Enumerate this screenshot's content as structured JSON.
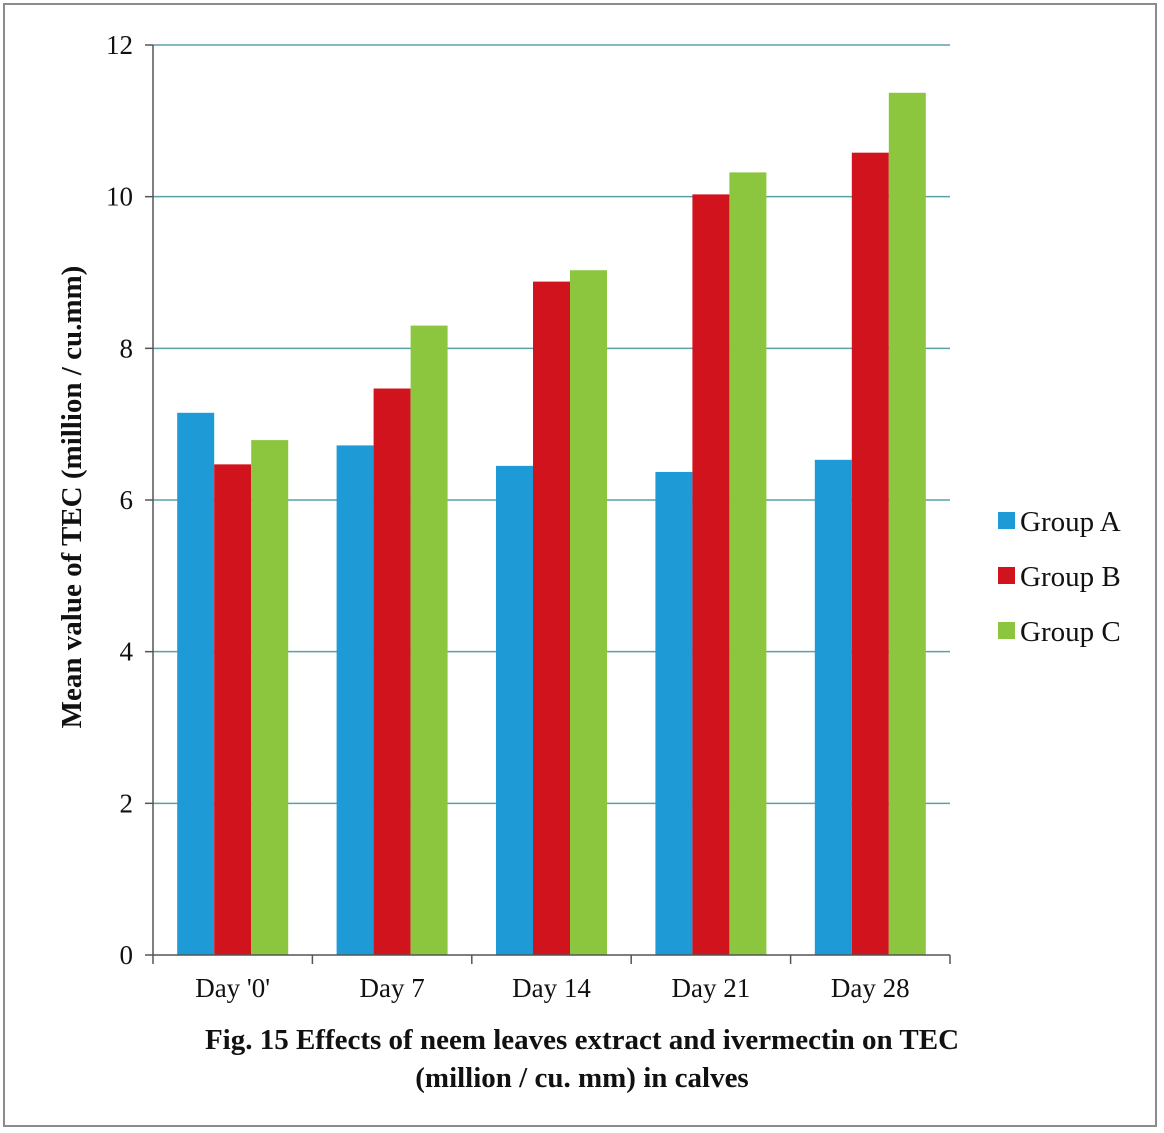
{
  "caption": {
    "line1": "Fig. 15 Effects of neem leaves extract and ivermectin on TEC",
    "line2": "(million / cu. mm) in calves"
  },
  "chart_data": {
    "type": "bar",
    "title": "Fig. 15 Effects of neem leaves extract and ivermectin on TEC (million / cu. mm) in calves",
    "xlabel": "",
    "ylabel": "Mean value of TEC (million / cu.mm)",
    "categories": [
      "Day '0'",
      "Day 7",
      "Day 14",
      "Day 21",
      "Day 28"
    ],
    "ylim": [
      0,
      12
    ],
    "yticks": [
      0,
      2,
      4,
      6,
      8,
      10,
      12
    ],
    "grid": true,
    "legend_position": "right",
    "series": [
      {
        "name": "Group A",
        "color": "#1e9bd7",
        "values": [
          7.15,
          6.72,
          6.45,
          6.37,
          6.53
        ]
      },
      {
        "name": "Group B",
        "color": "#d0131c",
        "values": [
          6.47,
          7.47,
          8.88,
          10.03,
          10.58
        ]
      },
      {
        "name": "Group C",
        "color": "#8cc63e",
        "values": [
          6.79,
          8.3,
          9.03,
          10.32,
          11.37
        ]
      }
    ]
  }
}
